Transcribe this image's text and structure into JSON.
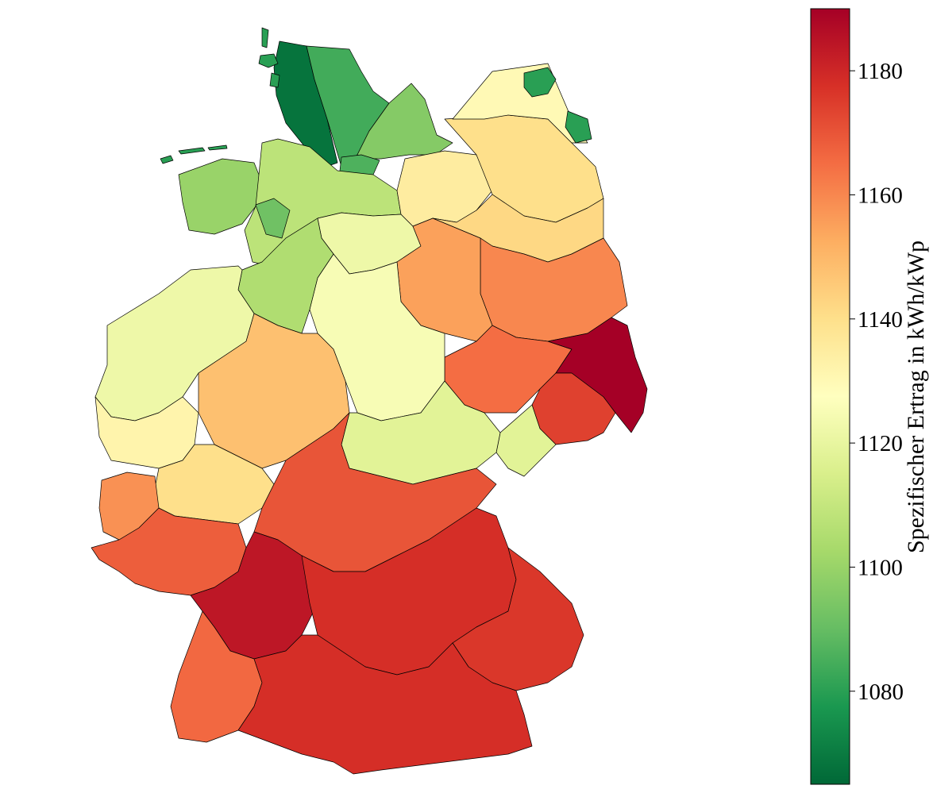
{
  "map": {
    "subject": "Germany",
    "colormap": "RdYlGn_r",
    "region_values": [
      {
        "area": "Schleswig-Holstein west coast",
        "value": 1068
      },
      {
        "area": "Schleswig-Holstein central",
        "value": 1084
      },
      {
        "area": "Schleswig-Holstein east",
        "value": 1096
      },
      {
        "area": "Hamburg",
        "value": 1086
      },
      {
        "area": "Lower Saxony northwest coast",
        "value": 1100
      },
      {
        "area": "Lower Saxony north",
        "value": 1108
      },
      {
        "area": "Bremen",
        "value": 1092
      },
      {
        "area": "Lower Saxony east",
        "value": 1122
      },
      {
        "area": "Mecklenburg-Western Pomerania west",
        "value": 1135
      },
      {
        "area": "Mecklenburg-Western Pomerania east",
        "value": 1140
      },
      {
        "area": "Mecklenburg coast",
        "value": 1130
      },
      {
        "area": "Brandenburg north",
        "value": 1142
      },
      {
        "area": "Brandenburg south",
        "value": 1160
      },
      {
        "area": "Saxony-Anhalt",
        "value": 1155
      },
      {
        "area": "Saxony west",
        "value": 1165
      },
      {
        "area": "Saxony east (Lusatia)",
        "value": 1190
      },
      {
        "area": "Saxony southwest",
        "value": 1174
      },
      {
        "area": "Lower Saxony south",
        "value": 1118
      },
      {
        "area": "North Rhine-Westphalia east",
        "value": 1125
      },
      {
        "area": "North Rhine-Westphalia west",
        "value": 1105
      },
      {
        "area": "Hesse north",
        "value": 1122
      },
      {
        "area": "Hesse south",
        "value": 1132
      },
      {
        "area": "Thuringia",
        "value": 1148
      },
      {
        "area": "Rhineland-Palatinate north",
        "value": 1118
      },
      {
        "area": "Saarland / Palatinate",
        "value": 1140
      },
      {
        "area": "Rhineland-Palatinate south",
        "value": 1158
      },
      {
        "area": "Franconia north",
        "value": 1168
      },
      {
        "area": "Baden-Württemberg north",
        "value": 1170
      },
      {
        "area": "Bavaria central",
        "value": 1184
      },
      {
        "area": "Bavaria east",
        "value": 1178
      },
      {
        "area": "Baden-Württemberg south",
        "value": 1176
      },
      {
        "area": "Black Forest southwest",
        "value": 1166
      },
      {
        "area": "Bavaria south (Alps)",
        "value": 1178
      }
    ]
  },
  "colorbar": {
    "label": "Spezifischer Ertrag in kWh/kWp",
    "vmin": 1065,
    "vmax": 1190,
    "ticks": [
      "1080",
      "1100",
      "1120",
      "1140",
      "1160",
      "1180"
    ],
    "tick_values": [
      1080,
      1100,
      1120,
      1140,
      1160,
      1180
    ],
    "color_stops": [
      "#006837",
      "#1a9850",
      "#66bd63",
      "#a6d96a",
      "#d9ef8b",
      "#ffffbf",
      "#fee08b",
      "#fdae61",
      "#f46d43",
      "#d73027",
      "#a50026"
    ]
  }
}
